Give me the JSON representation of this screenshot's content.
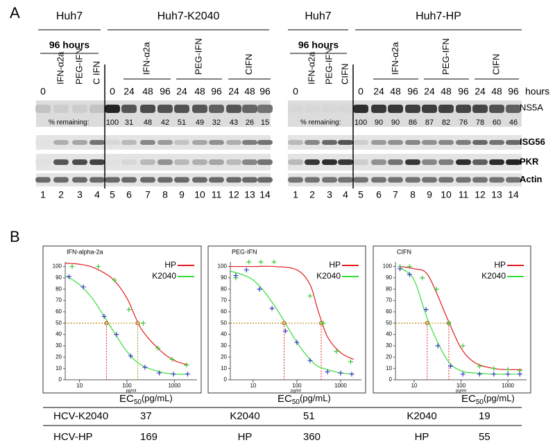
{
  "panel_a": {
    "label": "A",
    "blots": [
      {
        "groups": [
          "Huh7",
          "Huh7-K2040"
        ],
        "duration": "96 hours",
        "lanes": [
          "0",
          "IFN-α2a",
          "PEG-IFN",
          "C IFN",
          "0",
          "24",
          "48",
          "96",
          "24",
          "48",
          "96",
          "24",
          "48",
          "96"
        ],
        "treatments": [
          "IFN-α2a",
          "PEG-IFN",
          "CIFN"
        ],
        "remaining_label": "% remaining:",
        "remaining": [
          100,
          31,
          48,
          42,
          51,
          49,
          32,
          43,
          26,
          15
        ],
        "lane_numbers": [
          1,
          2,
          3,
          4,
          5,
          6,
          7,
          8,
          9,
          10,
          11,
          12,
          13,
          14
        ]
      },
      {
        "groups": [
          "Huh7",
          "Huh7-HP"
        ],
        "duration": "96 hours",
        "lanes": [
          "0",
          "IFN-α2a",
          "PEG-IFN",
          "CIFN",
          "0",
          "24",
          "48",
          "96",
          "24",
          "48",
          "96",
          "24",
          "48",
          "96"
        ],
        "treatments": [
          "IFN-α2a",
          "PEG-IFN",
          "CIFN"
        ],
        "time_label": "hours",
        "rows": [
          "NS5A",
          "ISG56",
          "PKR",
          "Actin"
        ],
        "remaining_label": "% remaining:",
        "remaining": [
          100,
          90,
          90,
          86,
          87,
          82,
          76,
          78,
          60,
          46
        ],
        "lane_numbers": [
          1,
          2,
          3,
          4,
          5,
          6,
          7,
          8,
          9,
          10,
          11,
          12,
          13,
          14
        ]
      }
    ]
  },
  "chart_data": [
    {
      "type": "scatter",
      "title": "IFN-alpha-2a",
      "xlabel": "pg/ml",
      "xscale": "log",
      "xlim": [
        5,
        3000
      ],
      "ylim": [
        0,
        104
      ],
      "xticks": [
        10,
        100,
        1000
      ],
      "yticks": [
        0,
        10,
        20,
        30,
        40,
        50,
        60,
        70,
        80,
        90,
        100
      ],
      "legend": "upper right",
      "ec50_level": 50,
      "ec50_line_color": "#b8860b",
      "series": [
        {
          "name": "HP",
          "color": "#e31a1c",
          "marker_color": "#33cc33",
          "ec50_color": "#999900",
          "x": [
            7,
            25,
            55,
            110,
            220,
            450,
            900,
            1800
          ],
          "values": [
            100,
            100,
            88,
            62,
            50,
            28,
            18,
            13
          ],
          "fit_x": [
            5,
            10,
            20,
            50,
            100,
            200,
            500,
            1000,
            2000
          ],
          "fit": [
            103,
            102,
            99,
            89,
            72,
            45,
            26,
            17,
            13
          ],
          "ec50": 169
        },
        {
          "name": "K2040",
          "color": "#33dd33",
          "marker_color": "#3333cc",
          "ec50_color": "#e31a1c",
          "x": [
            6,
            12,
            33,
            60,
            120,
            240,
            480,
            960,
            1900
          ],
          "values": [
            91,
            82,
            56,
            40,
            21,
            11,
            6,
            5,
            5
          ],
          "fit_x": [
            5,
            10,
            20,
            50,
            100,
            200,
            500,
            1000,
            2000
          ],
          "fit": [
            92,
            84,
            70,
            44,
            25,
            13,
            7,
            5,
            5
          ],
          "ec50": 37
        }
      ]
    },
    {
      "type": "scatter",
      "title": "PEG-IFN",
      "xlabel": "pg/ml",
      "xscale": "log",
      "xlim": [
        3,
        3000
      ],
      "ylim": [
        0,
        104
      ],
      "xticks": [
        10,
        100,
        1000
      ],
      "yticks": [
        0,
        10,
        20,
        30,
        40,
        50,
        60,
        70,
        80,
        90,
        100
      ],
      "legend": "upper right",
      "ec50_level": 50,
      "ec50_line_color": "#b8860b",
      "series": [
        {
          "name": "HP",
          "color": "#e31a1c",
          "marker_color": "#33cc33",
          "ec50_color": "#e31a1c",
          "x": [
            4,
            8,
            15,
            30,
            200,
            400,
            800,
            1700
          ],
          "values": [
            90,
            104,
            104,
            104,
            74,
            50,
            25,
            16
          ],
          "fit_x": [
            3,
            10,
            30,
            100,
            200,
            300,
            500,
            1000,
            2000
          ],
          "fit": [
            100,
            100,
            100,
            97,
            84,
            62,
            38,
            24,
            18
          ],
          "ec50": 360
        },
        {
          "name": "K2040",
          "color": "#33dd33",
          "marker_color": "#3333cc",
          "ec50_color": "#e31a1c",
          "x": [
            4,
            7,
            14,
            27,
            55,
            100,
            200,
            500,
            1000,
            1800
          ],
          "values": [
            92,
            97,
            80,
            63,
            43,
            33,
            17,
            7,
            6,
            5
          ],
          "fit_x": [
            3,
            10,
            30,
            100,
            200,
            300,
            500,
            1000,
            2000
          ],
          "fit": [
            96,
            88,
            66,
            33,
            18,
            12,
            9,
            6,
            5
          ],
          "ec50": 51
        }
      ]
    },
    {
      "type": "scatter",
      "title": "CIFN",
      "xlabel": "pg/ml",
      "xscale": "log",
      "xlim": [
        4,
        2500
      ],
      "ylim": [
        0,
        104
      ],
      "xticks": [
        10,
        100,
        1000
      ],
      "yticks": [
        0,
        10,
        20,
        30,
        40,
        50,
        60,
        70,
        80,
        90,
        100
      ],
      "legend": "upper right",
      "ec50_level": 50,
      "ec50_line_color": "#b8860b",
      "series": [
        {
          "name": "HP",
          "color": "#e31a1c",
          "marker_color": "#33cc33",
          "ec50_color": "#e31a1c",
          "x": [
            5,
            8,
            15,
            30,
            55,
            110,
            250,
            500,
            1000,
            1800
          ],
          "values": [
            100,
            100,
            90,
            80,
            50,
            30,
            12,
            10,
            9,
            8
          ],
          "fit_x": [
            5,
            10,
            20,
            50,
            100,
            200,
            500,
            1000,
            2000
          ],
          "fit": [
            100,
            98,
            92,
            55,
            28,
            15,
            10,
            9,
            9
          ],
          "ec50": 55
        },
        {
          "name": "K2040",
          "color": "#33dd33",
          "marker_color": "#3333cc",
          "ec50_color": "#e31a1c",
          "x": [
            5,
            8,
            18,
            32,
            60,
            110,
            250,
            500,
            1000,
            1800
          ],
          "values": [
            98,
            93,
            62,
            30,
            12,
            5,
            5,
            5,
            5,
            5
          ],
          "fit_x": [
            5,
            10,
            20,
            50,
            100,
            200,
            500,
            1000,
            2000
          ],
          "fit": [
            99,
            88,
            52,
            18,
            8,
            6,
            5,
            5,
            5
          ],
          "ec50": 19
        }
      ]
    }
  ],
  "panel_b": {
    "label": "B",
    "ec50_table": [
      {
        "header": "EC",
        "header_sub": "50",
        "header_unit": "(pg/mL)",
        "rows": [
          "HCV-K2040",
          "HCV-HP"
        ]
      },
      {
        "header": "EC",
        "header_sub": "50",
        "header_unit": "(pg/mL)",
        "rows": [
          "K2040",
          "HP"
        ]
      },
      {
        "header": "EC",
        "header_sub": "50",
        "header_unit": "(pg/mL)",
        "rows": [
          "K2040",
          "HP"
        ]
      }
    ]
  }
}
